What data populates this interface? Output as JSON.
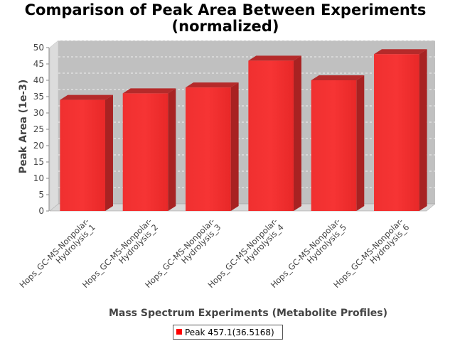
{
  "chart_data": {
    "type": "bar",
    "title": [
      "Comparison of Peak Area Between Experiments",
      "(normalized)"
    ],
    "xlabel": "Mass Spectrum Experiments (Metabolite Profiles)",
    "ylabel": "Peak Area (1e-3)",
    "ylim": [
      0,
      50
    ],
    "yticks": [
      0,
      5,
      10,
      15,
      20,
      25,
      30,
      35,
      40,
      45,
      50
    ],
    "categories": [
      [
        "Hops_GC-MS-Nonpolar-",
        "Hydrolysis_1"
      ],
      [
        "Hops_GC-MS-Nonpolar-",
        "Hydrolysis_2"
      ],
      [
        "Hops_GC-MS-Nonpolar-",
        "Hydrolysis_3"
      ],
      [
        "Hops_GC-MS-Nonpolar-",
        "Hydrolysis_4"
      ],
      [
        "Hops_GC-MS-Nonpolar-",
        "Hydrolysis_5"
      ],
      [
        "Hops_GC-MS-Nonpolar-",
        "Hydrolysis_6"
      ]
    ],
    "series": [
      {
        "name": "Peak 457.1(36.5168)",
        "color": "#ee2222",
        "values": [
          34,
          36,
          37.8,
          46,
          40,
          48
        ]
      }
    ],
    "grid": true,
    "legend_position": "bottom-center",
    "style": "3d"
  }
}
